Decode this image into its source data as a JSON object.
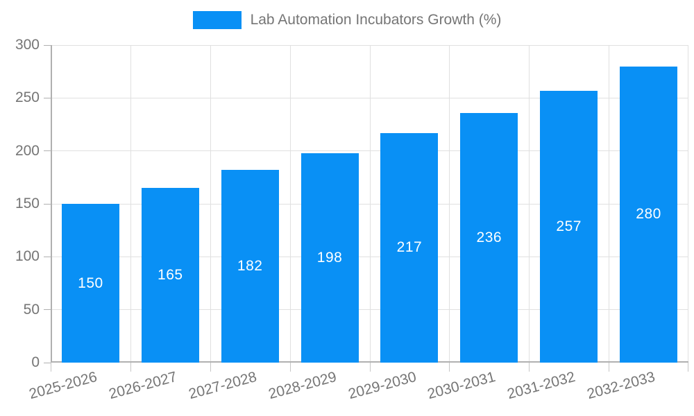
{
  "chart_data": {
    "type": "bar",
    "title": "Lab Automation Incubators Growth (%)",
    "legend": {
      "position": "top-center",
      "label": "Lab Automation Incubators Growth (%)"
    },
    "categories": [
      "2025-2026",
      "2026-2027",
      "2027-2028",
      "2028-2029",
      "2029-2030",
      "2030-2031",
      "2031-2032",
      "2032-2033"
    ],
    "values": [
      150,
      165,
      182,
      198,
      217,
      236,
      257,
      280
    ],
    "xlabel": "",
    "ylabel": "",
    "ylim": [
      0,
      300
    ],
    "yticks": [
      0,
      50,
      100,
      150,
      200,
      250,
      300
    ],
    "grid": "both",
    "bar_labels_inside": "center",
    "x_tick_label_rotation_deg": -15,
    "colors": {
      "bar": "#0990f5",
      "bar_label": "#ffffff",
      "axis_text": "#757575",
      "grid_line": "#e0e0e0",
      "axis_line": "#b0b0b0",
      "tick": "#c6c6c6",
      "background": "#ffffff"
    }
  }
}
